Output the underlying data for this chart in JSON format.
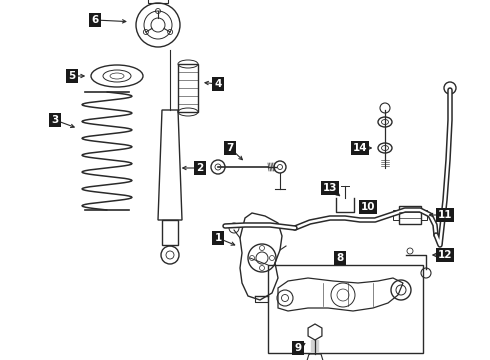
{
  "bg_color": "#ffffff",
  "line_color": "#2a2a2a",
  "label_bg": "#1a1a1a",
  "label_fg": "#ffffff",
  "label_fontsize": 7.5,
  "figsize": [
    4.9,
    3.6
  ],
  "dpi": 100
}
